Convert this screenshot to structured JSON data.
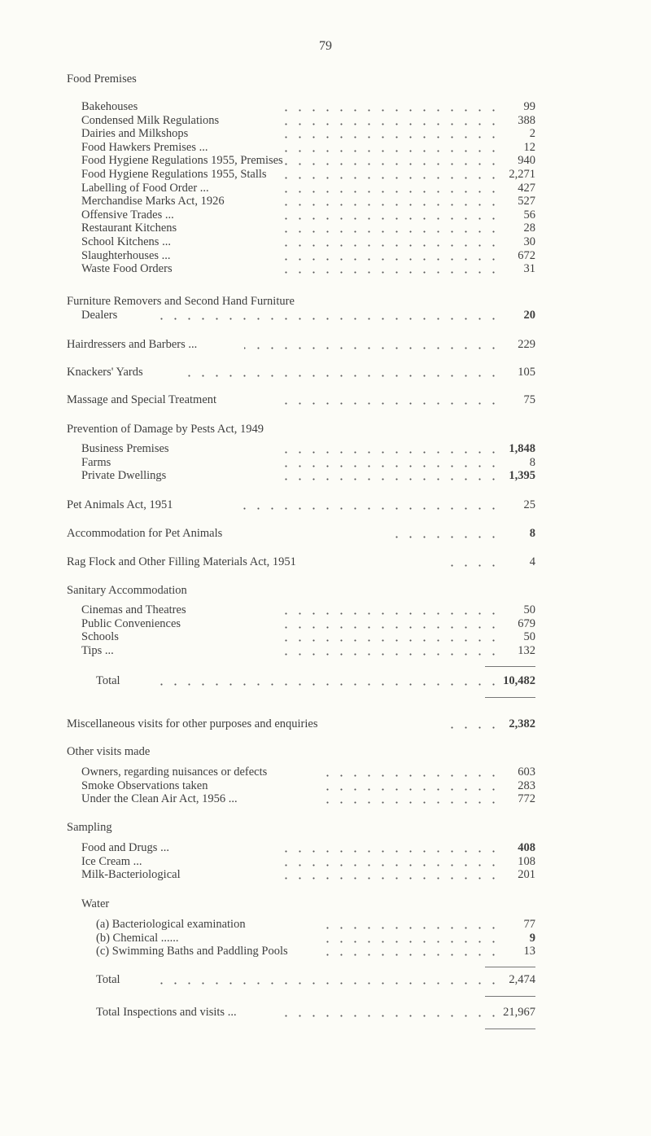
{
  "page_number": "79",
  "food_premises": {
    "heading": "Food Premises",
    "items": [
      {
        "label": "Bakehouses",
        "value": "99"
      },
      {
        "label": "Condensed Milk Regulations",
        "value": "388"
      },
      {
        "label": "Dairies and Milkshops",
        "value": "2"
      },
      {
        "label": "Food Hawkers Premises ...",
        "value": "12"
      },
      {
        "label": "Food Hygiene Regulations 1955, Premises",
        "value": "940"
      },
      {
        "label": "Food Hygiene Regulations 1955, Stalls",
        "value": "2,271"
      },
      {
        "label": "Labelling of Food Order ...",
        "value": "427"
      },
      {
        "label": "Merchandise Marks Act, 1926",
        "value": "527"
      },
      {
        "label": "Offensive Trades ...",
        "value": "56"
      },
      {
        "label": "Restaurant Kitchens",
        "value": "28"
      },
      {
        "label": "School Kitchens ...",
        "value": "30"
      },
      {
        "label": "Slaughterhouses ...",
        "value": "672"
      },
      {
        "label": "Waste Food Orders",
        "value": "31"
      }
    ]
  },
  "furniture": {
    "label_line1": "Furniture Removers and Second Hand Furniture",
    "label_line2": "Dealers",
    "value": "20"
  },
  "hairdressers": {
    "label": "Hairdressers and Barbers ...",
    "value": "229"
  },
  "knackers": {
    "label": "Knackers' Yards",
    "value": "105"
  },
  "massage": {
    "label": "Massage and Special Treatment",
    "value": "75"
  },
  "pests": {
    "heading": "Prevention of Damage by Pests Act, 1949",
    "items": [
      {
        "label": "Business Premises",
        "value": "1,848"
      },
      {
        "label": "Farms",
        "value": "8"
      },
      {
        "label": "Private Dwellings",
        "value": "1,395"
      }
    ]
  },
  "pet_animals": {
    "label": "Pet Animals Act, 1951",
    "value": "25"
  },
  "accommodation": {
    "label": "Accommodation for Pet Animals",
    "value": "8"
  },
  "rag_flock": {
    "label": "Rag Flock and Other Filling Materials Act, 1951",
    "value": "4"
  },
  "sanitary": {
    "heading": "Sanitary Accommodation",
    "items": [
      {
        "label": "Cinemas and Theatres",
        "value": "50"
      },
      {
        "label": "Public Conveniences",
        "value": "679"
      },
      {
        "label": "Schools",
        "value": "50"
      },
      {
        "label": "Tips ...",
        "value": "132"
      }
    ]
  },
  "total1": {
    "label": "Total",
    "value": "10,482"
  },
  "miscellaneous": {
    "label": "Miscellaneous visits for other purposes and enquiries",
    "value": "2,382"
  },
  "other_visits": {
    "heading": "Other visits made",
    "items": [
      {
        "label": "Owners, regarding nuisances or defects",
        "value": "603"
      },
      {
        "label": "Smoke Observations taken",
        "value": "283"
      },
      {
        "label": "Under the Clean Air Act, 1956 ...",
        "value": "772"
      }
    ]
  },
  "sampling": {
    "heading": "Sampling",
    "items": [
      {
        "label": "Food and Drugs ...",
        "value": "408"
      },
      {
        "label": "Ice Cream ...",
        "value": "108"
      },
      {
        "label": "Milk-Bacteriological",
        "value": "201"
      }
    ],
    "water_heading": "Water",
    "water_items": [
      {
        "label": "(a) Bacteriological examination",
        "value": "77"
      },
      {
        "label": "(b) Chemical ......",
        "value": "9"
      },
      {
        "label": "(c) Swimming Baths and Paddling Pools",
        "value": "13"
      }
    ]
  },
  "total2": {
    "label": "Total",
    "value": "2,474"
  },
  "grand_total": {
    "label": "Total Inspections and visits ...",
    "value": "21,967"
  }
}
